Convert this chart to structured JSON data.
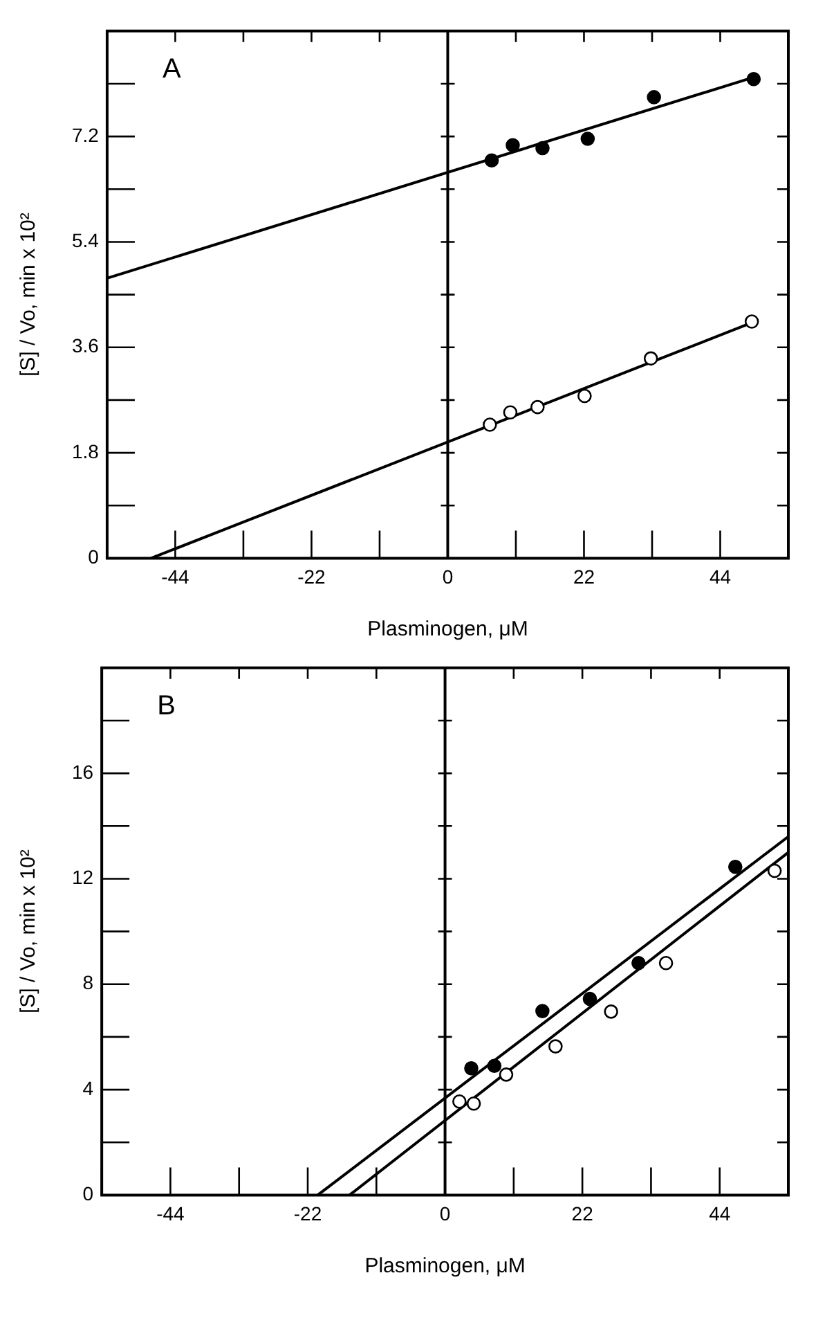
{
  "chart_data": [
    {
      "type": "scatter",
      "xlabel": "Plasminogen, μM",
      "ylabel": "[S] / Vo, min x 10²",
      "annotations": [
        "A"
      ],
      "xlim": [
        -55,
        55
      ],
      "xticks": [
        {
          "value": -55,
          "label": null
        },
        -44,
        {
          "value": -33,
          "label": null
        },
        -22,
        {
          "value": -11,
          "label": null
        },
        0,
        {
          "value": 11,
          "label": null
        },
        22,
        {
          "value": 33,
          "label": null
        },
        44,
        {
          "value": 55,
          "label": null
        }
      ],
      "ylim": [
        0,
        9
      ],
      "yticks": [
        0,
        {
          "value": 0.9,
          "label": null
        },
        1.8,
        {
          "value": 2.7,
          "label": null
        },
        3.6,
        {
          "value": 4.5,
          "label": null
        },
        5.4,
        {
          "value": 6.3,
          "label": null
        },
        7.2,
        {
          "value": 8.1,
          "label": null
        }
      ],
      "grid": false,
      "ref_lines": [
        {
          "axis": "x",
          "value": 0,
          "color": "#000000"
        }
      ],
      "series": [
        {
          "type": "scatter",
          "marker": "circle",
          "color": "#000000",
          "x": [
            7.1,
            10.5,
            15.3,
            22.6,
            33.3,
            49.4
          ],
          "values": [
            6.79,
            7.05,
            7.0,
            7.16,
            7.87,
            8.18
          ]
        },
        {
          "type": "line",
          "marker": "none",
          "color": "#000000",
          "x": [
            -55,
            49.4
          ],
          "values": [
            4.78,
            8.21
          ]
        },
        {
          "type": "scatter",
          "marker": "circle",
          "color": "#ffffff",
          "x": [
            6.8,
            10.1,
            14.5,
            22.1,
            32.8,
            49.1
          ],
          "values": [
            2.28,
            2.49,
            2.58,
            2.77,
            3.41,
            4.04
          ]
        },
        {
          "type": "line",
          "marker": "none",
          "color": "#000000",
          "x": [
            -47.9,
            49.1
          ],
          "values": [
            0,
            4.02
          ]
        }
      ]
    },
    {
      "type": "scatter",
      "xlabel": "Plasminogen, μM",
      "ylabel": "[S] / Vo, min x 10²",
      "annotations": [
        "B"
      ],
      "xlim": [
        -55,
        55
      ],
      "xticks": [
        {
          "value": -55,
          "label": null
        },
        -44,
        {
          "value": -33,
          "label": null
        },
        -22,
        {
          "value": -11,
          "label": null
        },
        0,
        {
          "value": 11,
          "label": null
        },
        22,
        {
          "value": 33,
          "label": null
        },
        44,
        {
          "value": 55,
          "label": null
        }
      ],
      "ylim": [
        0,
        20
      ],
      "yticks": [
        0,
        {
          "value": 2,
          "label": null
        },
        4,
        {
          "value": 6,
          "label": null
        },
        8,
        {
          "value": 10,
          "label": null
        },
        12,
        {
          "value": 14,
          "label": null
        },
        16,
        {
          "value": 18,
          "label": null
        },
        {
          "value": 20,
          "label": null
        }
      ],
      "grid": false,
      "ref_lines": [
        {
          "axis": "x",
          "value": 0,
          "color": "#000000"
        }
      ],
      "series": [
        {
          "type": "scatter",
          "marker": "circle",
          "color": "#000000",
          "x": [
            4.2,
            7.9,
            15.6,
            23.2,
            31.0,
            46.5
          ],
          "values": [
            4.81,
            4.9,
            6.98,
            7.44,
            8.8,
            12.45
          ]
        },
        {
          "type": "line",
          "marker": "none",
          "color": "#000000",
          "x": [
            -20.4,
            55
          ],
          "values": [
            0,
            13.6
          ]
        },
        {
          "type": "scatter",
          "marker": "circle",
          "color": "#ffffff",
          "x": [
            2.3,
            4.6,
            9.8,
            17.7,
            26.6,
            35.4,
            52.8
          ],
          "values": [
            3.55,
            3.47,
            4.57,
            5.64,
            6.96,
            8.8,
            12.3
          ]
        },
        {
          "type": "line",
          "marker": "none",
          "color": "#000000",
          "x": [
            -15.3,
            55
          ],
          "values": [
            0,
            13.0
          ]
        }
      ]
    }
  ]
}
